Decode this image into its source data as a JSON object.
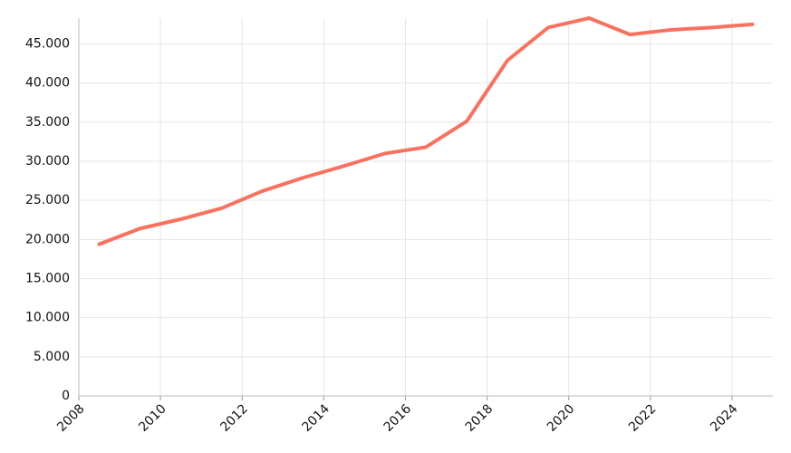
{
  "chart_data": {
    "type": "line",
    "x": [
      2008.5,
      2009.5,
      2010.5,
      2011.5,
      2012.5,
      2013.5,
      2014.5,
      2015.5,
      2016.5,
      2017.5,
      2018.5,
      2019.5,
      2020.5,
      2021.5,
      2022.5,
      2023.5,
      2024.5
    ],
    "series": [
      {
        "color": "#f7725f",
        "values": [
          19400,
          21400,
          22600,
          24000,
          26200,
          27900,
          29400,
          31000,
          31800,
          35100,
          42900,
          47100,
          48300,
          46200,
          46800,
          47100,
          47500
        ]
      }
    ],
    "xlim": [
      2008,
      2025
    ],
    "ylim": [
      0,
      48300
    ],
    "xticks": [
      2008,
      2010,
      2012,
      2014,
      2016,
      2018,
      2020,
      2022,
      2024
    ],
    "yticks": [
      0,
      {
        "value": 5000,
        "label": "5.000"
      },
      {
        "value": 10000,
        "label": "10.000"
      },
      {
        "value": 15000,
        "label": "15.000"
      },
      {
        "value": 20000,
        "label": "20.000"
      },
      {
        "value": 25000,
        "label": "25.000"
      },
      {
        "value": 30000,
        "label": "30.000"
      },
      {
        "value": 35000,
        "label": "35.000"
      },
      {
        "value": 40000,
        "label": "40.000"
      },
      {
        "value": 45000,
        "label": "45.000"
      }
    ],
    "grid": true
  }
}
